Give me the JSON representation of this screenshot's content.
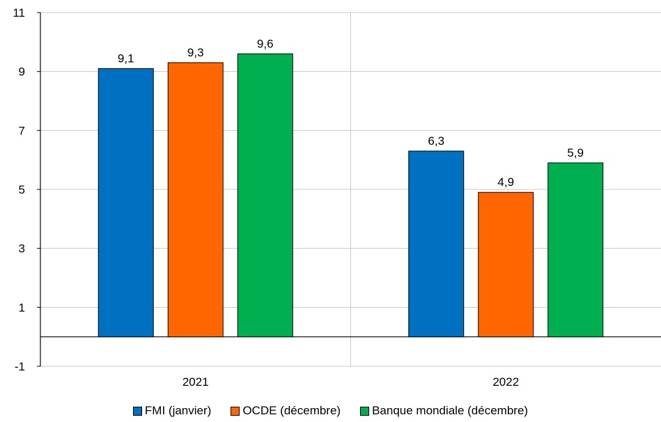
{
  "chart_data": {
    "type": "bar",
    "categories": [
      "2021",
      "2022"
    ],
    "series": [
      {
        "name": "FMI (janvier)",
        "values": [
          9.1,
          6.3
        ],
        "labels": [
          "9,1",
          "6,3"
        ],
        "color": "#0070C0"
      },
      {
        "name": "OCDE (décembre)",
        "values": [
          9.3,
          4.9
        ],
        "labels": [
          "9,3",
          "4,9"
        ],
        "color": "#FF6600"
      },
      {
        "name": "Banque mondiale (décembre)",
        "values": [
          9.6,
          5.9
        ],
        "labels": [
          "9,6",
          "5,9"
        ],
        "color": "#00B050"
      }
    ],
    "ylim": [
      -1,
      11
    ],
    "yticks": [
      "-1",
      "1",
      "3",
      "5",
      "7",
      "9",
      "11"
    ],
    "grid": true,
    "legend": "bottom"
  }
}
